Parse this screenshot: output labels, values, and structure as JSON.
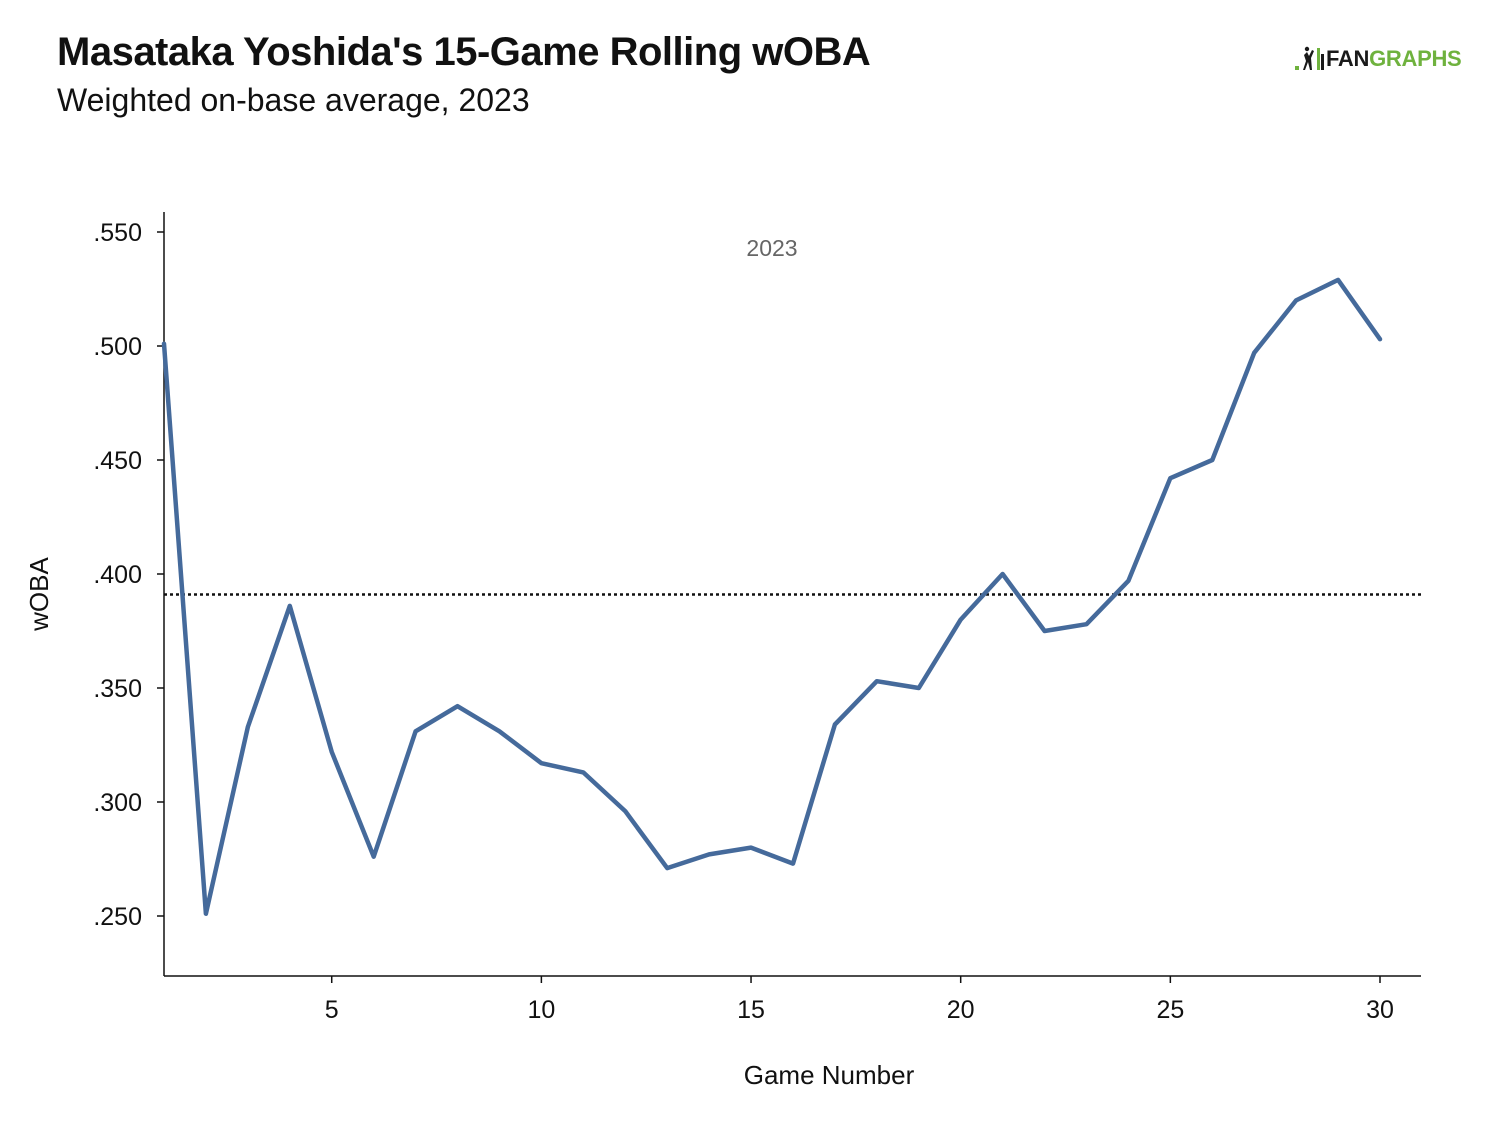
{
  "header": {
    "title": "Masataka Yoshida's 15-Game Rolling wOBA",
    "subtitle": "Weighted on-base average, 2023"
  },
  "logo": {
    "fan": "FAN",
    "graphs": "GRAPHS",
    "icon": "fangraphs-batter-icon"
  },
  "colors": {
    "line": "#456a9b",
    "reference": "#111111",
    "logo_green": "#6fb23e",
    "axis": "#111111"
  },
  "chart_data": {
    "type": "line",
    "title": "",
    "annotation": "2023",
    "xlabel": "Game Number",
    "ylabel": "wOBA",
    "xlim": [
      1,
      31
    ],
    "ylim": [
      0.225,
      0.559
    ],
    "x_ticks": [
      5,
      10,
      15,
      20,
      25,
      30
    ],
    "y_ticks": [
      0.25,
      0.3,
      0.35,
      0.4,
      0.45,
      0.5,
      0.55
    ],
    "y_tick_labels": [
      ".250",
      ".300",
      ".350",
      ".400",
      ".450",
      ".500",
      ".550"
    ],
    "reference_line": {
      "y": 0.391,
      "style": "dotted"
    },
    "grid": false,
    "legend": "none",
    "series": [
      {
        "x": [
          1,
          2,
          3,
          4,
          5,
          6,
          7,
          8,
          9,
          10,
          11,
          12,
          13,
          14,
          15,
          16,
          17,
          18,
          19,
          20,
          21,
          22,
          23,
          24,
          25,
          26,
          27,
          28,
          29,
          30
        ],
        "values": [
          0.501,
          0.251,
          0.333,
          0.386,
          0.322,
          0.276,
          0.331,
          0.342,
          0.331,
          0.317,
          0.313,
          0.296,
          0.271,
          0.277,
          0.28,
          0.273,
          0.334,
          0.353,
          0.35,
          0.38,
          0.4,
          0.375,
          0.378,
          0.397,
          0.442,
          0.45,
          0.497,
          0.52,
          0.529,
          0.503
        ]
      }
    ]
  }
}
